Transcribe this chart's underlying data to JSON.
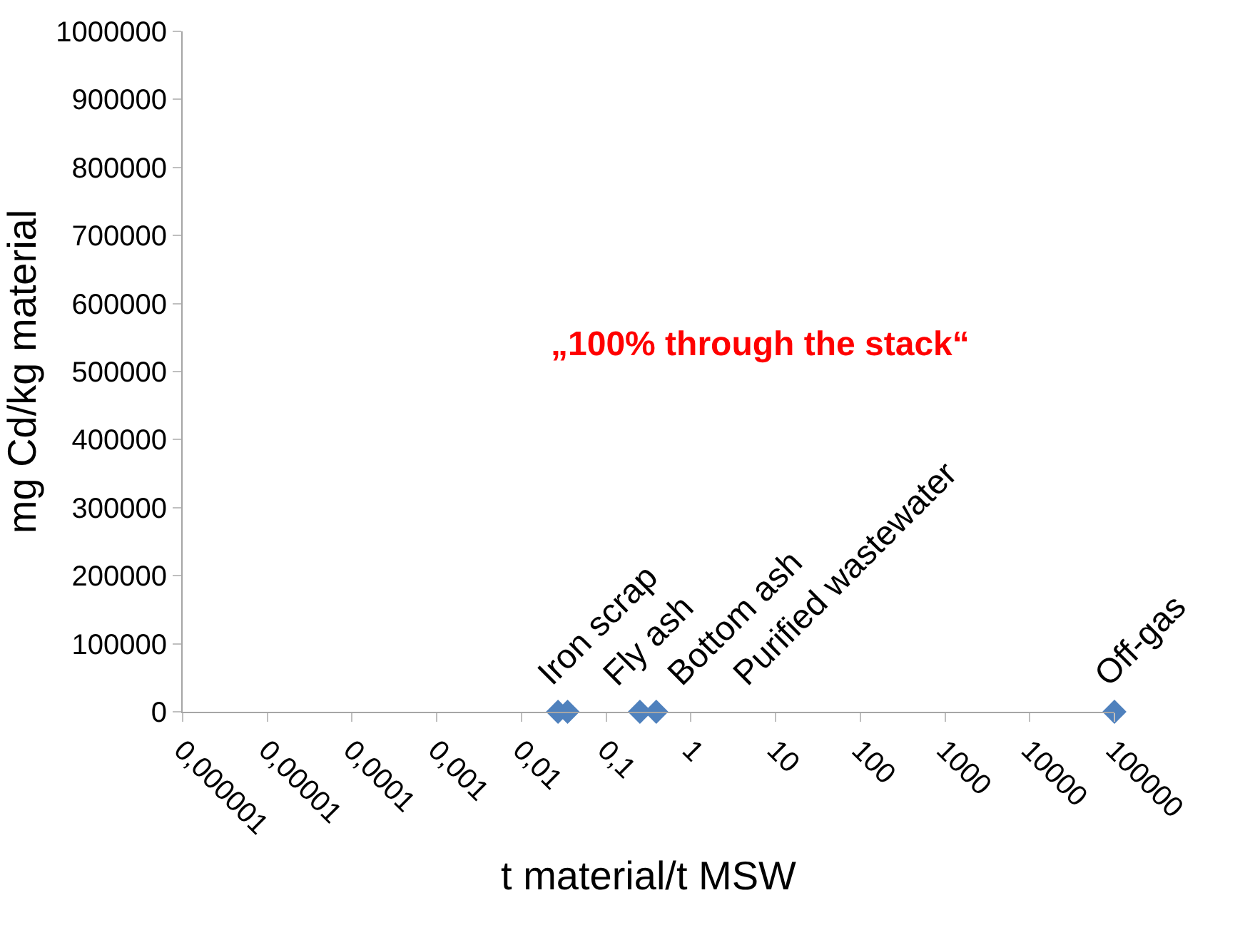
{
  "chart_data": {
    "type": "scatter",
    "xlabel": "t material/t MSW",
    "ylabel": "mg Cd/kg material",
    "x": [
      0.027,
      0.035,
      0.25,
      0.39,
      100000
    ],
    "values": [
      0,
      0,
      0,
      0,
      0
    ],
    "color": "#4f81bd",
    "marker": "diamond",
    "log": "x",
    "xlim": [
      1e-06,
      100000
    ],
    "xticks": [
      {
        "value": 1e-06,
        "label": "0,000001"
      },
      {
        "value": 1e-05,
        "label": "0,00001"
      },
      {
        "value": 0.0001,
        "label": "0,0001"
      },
      {
        "value": 0.001,
        "label": "0,001"
      },
      {
        "value": 0.01,
        "label": "0,01"
      },
      {
        "value": 0.1,
        "label": "0,1"
      },
      1,
      10,
      100,
      1000,
      10000,
      100000
    ],
    "ylim": [
      0,
      1000000
    ],
    "yticks": [
      0,
      100000,
      200000,
      300000,
      400000,
      500000,
      600000,
      700000,
      800000,
      900000,
      1000000
    ],
    "annotations": [
      {
        "text": "Iron scrap",
        "x": 0.027,
        "y": 0
      },
      {
        "text": "Fly ash",
        "x": 0.035,
        "y": 0
      },
      {
        "text": "Bottom ash",
        "x": 0.25,
        "y": 0
      },
      {
        "text": "Purified wastewater",
        "x": 0.39,
        "y": 0
      },
      {
        "text": "Off-gas",
        "x": 100000,
        "y": 0
      },
      "„100% through the stack“"
    ]
  }
}
